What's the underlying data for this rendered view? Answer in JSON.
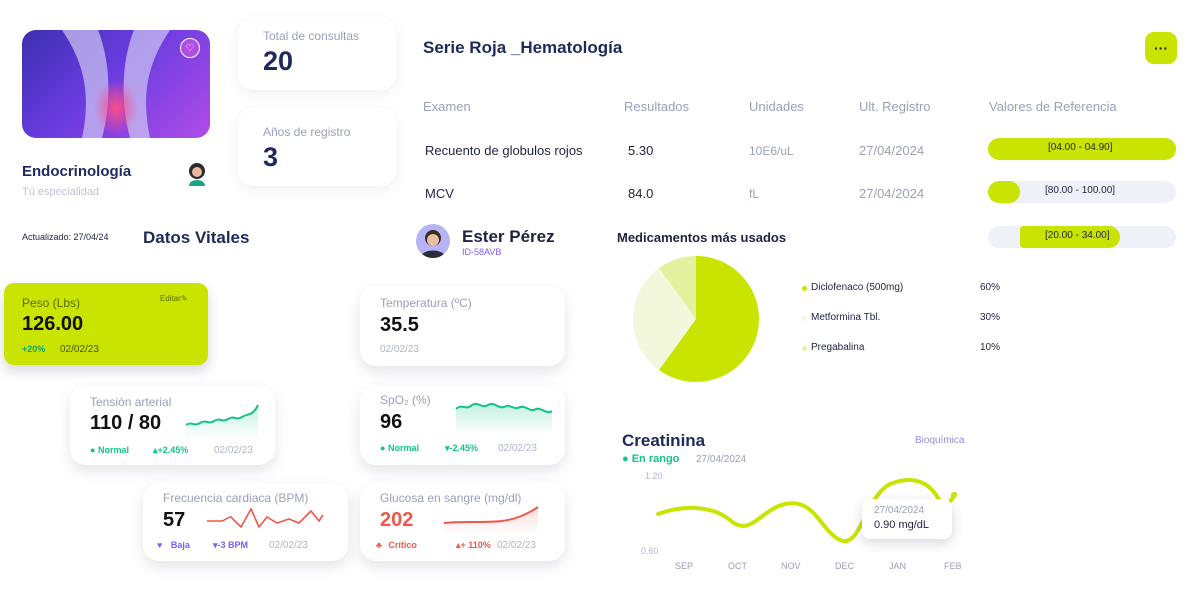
{
  "specialty": {
    "name": "Endocrinología",
    "subtitle": "Tú especialidad"
  },
  "stats": [
    {
      "label": "Total de consultas",
      "value": "20"
    },
    {
      "label": "Años de registro",
      "value": "3"
    }
  ],
  "lab": {
    "title": "Serie Roja _Hematología",
    "columns": [
      "Examen",
      "Resultados",
      "Unidades",
      "Ult. Registro",
      "Valores de Referencia"
    ],
    "rows": [
      {
        "exam": "Recuento de globulos rojos",
        "result": "5.30",
        "unit": "10E6/uL",
        "date": "27/04/2024",
        "range": "[04.00 - 04.90]",
        "fill": 1.0
      },
      {
        "exam": "MCV",
        "result": "84.0",
        "unit": "fL",
        "date": "27/04/2024",
        "range": "[80.00 - 100.00]",
        "fill": 0.17
      },
      {
        "exam": "",
        "result": "",
        "unit": "",
        "date": "",
        "range": "[20.00 - 34.00]",
        "fill": 0.7
      }
    ]
  },
  "updated": "Actualizado: 27/04/24",
  "vitals_title": "Datos Vitales",
  "patient": {
    "name": "Ester Pérez",
    "id": "ID-58AVB"
  },
  "vitals": {
    "weight": {
      "label": "Peso (Lbs)",
      "value": "126.00",
      "edit": "Editar",
      "delta": "+20%",
      "date": "02/02/23"
    },
    "temp": {
      "label": "Temperatura (ºC)",
      "value": "35.5",
      "date": "02/02/23"
    },
    "bp": {
      "label": "Tensión arterial",
      "value": "110 / 80",
      "status": "Normal",
      "delta": "+2.45%",
      "date": "02/02/23"
    },
    "spo2": {
      "label": "SpO₂ (%)",
      "value": "96",
      "status": "Normal",
      "delta": "-2.45%",
      "date": "02/02/23"
    },
    "hr": {
      "label": "Frecuencia cardiaca (BPM)",
      "value": "57",
      "status": "Baja",
      "delta": "-3 BPM",
      "date": "02/02/23"
    },
    "glucose": {
      "label": "Glucosa en sangre (mg/dl)",
      "value": "202",
      "status": "Crítico",
      "delta": "+ 110%",
      "date": "02/02/23"
    }
  },
  "meds": {
    "title": "Medicamentos más usados",
    "items": [
      {
        "name": "Diclofenaco (500mg)",
        "pct": "60%",
        "value": 60,
        "color": "#c9e400"
      },
      {
        "name": "Metformina Tbl.",
        "pct": "30%",
        "value": 30,
        "color": "#f3f7dc"
      },
      {
        "name": "Pregabalina",
        "pct": "10%",
        "value": 10,
        "color": "#e4f2a0"
      }
    ]
  },
  "creatinine": {
    "title": "Creatinina",
    "category": "Bioquímica",
    "status": "En rango",
    "date": "27/04/2024",
    "y_max_label": "1.20",
    "y_min_label": "0.60",
    "months": [
      "SEP",
      "OCT",
      "NOV",
      "DEC",
      "JAN",
      "FEB"
    ],
    "tooltip_date": "27/04/2024",
    "tooltip_value": "0.90 mg/dL"
  },
  "colors": {
    "accent": "#c9e400",
    "navy": "#1f2a5c",
    "green": "#12c48b",
    "red": "#f0564a",
    "purple": "#7b5cff"
  }
}
